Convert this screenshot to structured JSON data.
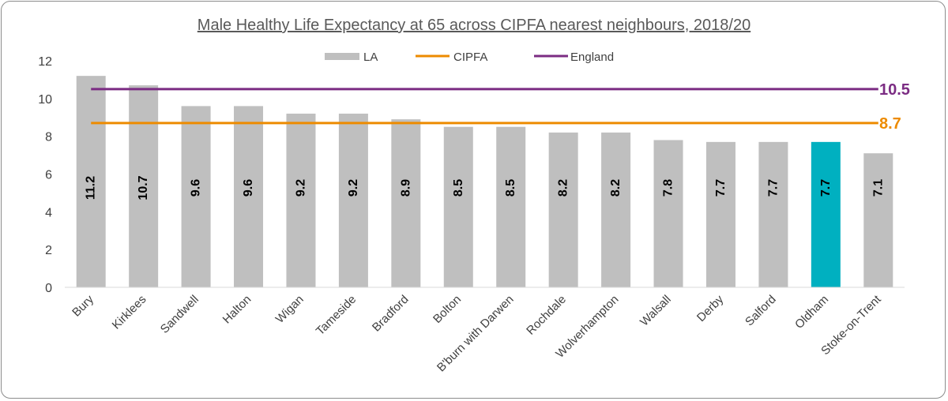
{
  "chart_data": {
    "type": "bar",
    "title": "Male Healthy Life Expectancy at 65 across CIPFA nearest neighbours, 2018/20",
    "categories": [
      "Bury",
      "Kirklees",
      "Sandwell",
      "Halton",
      "Wigan",
      "Tameside",
      "Bradford",
      "Bolton",
      "B'burn with Darwen",
      "Rochdale",
      "Wolverhampton",
      "Walsall",
      "Derby",
      "Salford",
      "Oldham",
      "Stoke-on-Trent"
    ],
    "series": [
      {
        "name": "LA",
        "values": [
          11.2,
          10.7,
          9.6,
          9.6,
          9.2,
          9.2,
          8.9,
          8.5,
          8.5,
          8.2,
          8.2,
          7.8,
          7.7,
          7.7,
          7.7,
          7.1
        ],
        "color": "#bfbfbf"
      }
    ],
    "data_labels": [
      "11.2",
      "10.7",
      "9.6",
      "9.6",
      "9.2",
      "9.2",
      "8.9",
      "8.5",
      "8.5",
      "8.2",
      "8.2",
      "7.8",
      "7.7",
      "7.7",
      "7.7",
      "7.1"
    ],
    "highlight": {
      "category": "Oldham",
      "color": "#00b0c0"
    },
    "reference_lines": [
      {
        "name": "CIPFA",
        "value": 8.7,
        "label": "8.7",
        "color": "#ed8b00"
      },
      {
        "name": "England",
        "value": 10.5,
        "label": "10.5",
        "color": "#7b2c83"
      }
    ],
    "ylim": [
      0,
      12
    ],
    "yticks": [
      0,
      2,
      4,
      6,
      8,
      10,
      12
    ],
    "grid": false,
    "legend": {
      "position": "top-center",
      "entries": [
        "LA",
        "CIPFA",
        "England"
      ]
    },
    "xlabel": "",
    "ylabel": ""
  }
}
